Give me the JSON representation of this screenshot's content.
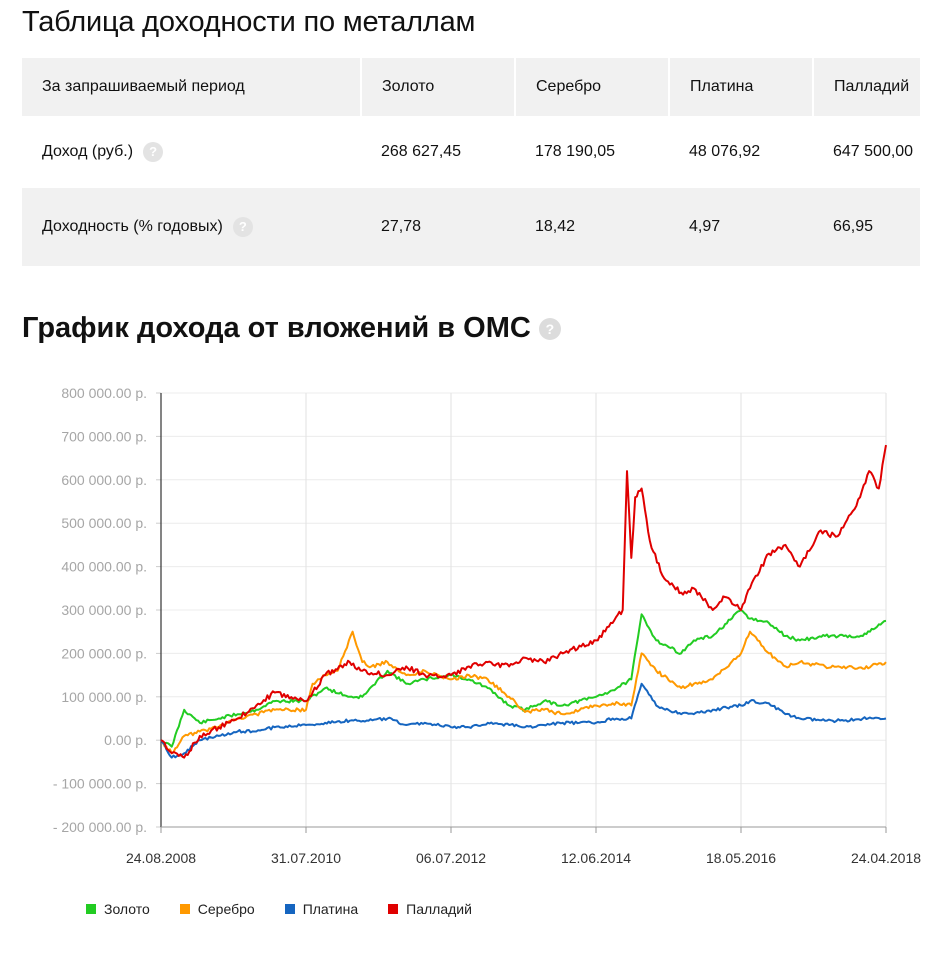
{
  "table": {
    "title": "Таблица доходности по металлам",
    "header": [
      "За запрашиваемый период",
      "Золото",
      "Серебро",
      "Платина",
      "Палладий"
    ],
    "rows": [
      {
        "label": "Доход (руб.)",
        "values": [
          "268 627,45",
          "178 190,05",
          "48 076,92",
          "647 500,00"
        ]
      },
      {
        "label": "Доходность (% годовых)",
        "values": [
          "27,78",
          "18,42",
          "4,97",
          "66,95"
        ]
      }
    ],
    "help_glyph": "?"
  },
  "chart_section": {
    "title": "График дохода от вложений в ОМС",
    "help_glyph": "?"
  },
  "chart_data": {
    "type": "line",
    "ylim": [
      -200000,
      800000
    ],
    "y_ticks": [
      800000,
      700000,
      600000,
      500000,
      400000,
      300000,
      200000,
      100000,
      0,
      -100000,
      -200000
    ],
    "y_tick_labels": [
      "800 000.00 р.",
      "700 000.00 р.",
      "600 000.00 р.",
      "500 000.00 р.",
      "400 000.00 р.",
      "300 000.00 р.",
      "200 000.00 р.",
      "100 000.00 р.",
      "0.00 р.",
      "- 100 000.00 р.",
      "- 200 000.00 р."
    ],
    "x_ticks": [
      "2008-08-24",
      "2010-07-31",
      "2012-07-06",
      "2014-06-12",
      "2016-05-18",
      "2018-04-24"
    ],
    "x_tick_labels": [
      "24.08.2008",
      "31.07.2010",
      "06.07.2012",
      "12.06.2014",
      "18.05.2016",
      "24.04.2018"
    ],
    "grid": true,
    "legend_position": "bottom-left",
    "series": [
      {
        "name": "Золото",
        "color": "#22cc22",
        "x": [
          "2008-08-24",
          "2008-10-15",
          "2008-12-15",
          "2009-03-01",
          "2009-06-01",
          "2009-09-01",
          "2009-12-01",
          "2010-03-01",
          "2010-07-31",
          "2010-11-01",
          "2011-03-01",
          "2011-05-01",
          "2011-09-01",
          "2011-12-01",
          "2012-03-01",
          "2012-07-06",
          "2012-10-01",
          "2013-01-01",
          "2013-04-15",
          "2013-07-01",
          "2013-10-01",
          "2014-01-01",
          "2014-06-12",
          "2014-09-01",
          "2014-12-01",
          "2015-01-20",
          "2015-04-01",
          "2015-08-01",
          "2015-10-01",
          "2016-01-01",
          "2016-05-18",
          "2016-07-01",
          "2016-10-01",
          "2016-12-20",
          "2017-03-01",
          "2017-07-01",
          "2017-10-01",
          "2018-01-01",
          "2018-04-24"
        ],
        "values": [
          0,
          -15000,
          70000,
          40000,
          50000,
          60000,
          70000,
          90000,
          90000,
          120000,
          100000,
          100000,
          160000,
          130000,
          140000,
          150000,
          140000,
          120000,
          80000,
          70000,
          90000,
          80000,
          100000,
          115000,
          140000,
          290000,
          230000,
          200000,
          230000,
          240000,
          300000,
          280000,
          270000,
          240000,
          230000,
          240000,
          240000,
          240000,
          275000
        ]
      },
      {
        "name": "Серебро",
        "color": "#ff9900",
        "x": [
          "2008-08-24",
          "2008-10-15",
          "2008-12-15",
          "2009-03-01",
          "2009-06-01",
          "2009-09-01",
          "2009-12-01",
          "2010-03-01",
          "2010-07-31",
          "2010-09-01",
          "2010-11-01",
          "2011-01-01",
          "2011-03-15",
          "2011-05-01",
          "2011-06-15",
          "2011-09-01",
          "2011-12-01",
          "2012-03-01",
          "2012-07-06",
          "2012-10-01",
          "2013-01-01",
          "2013-04-15",
          "2013-07-01",
          "2013-10-01",
          "2014-01-01",
          "2014-06-12",
          "2014-09-01",
          "2014-12-01",
          "2015-01-20",
          "2015-04-01",
          "2015-08-01",
          "2015-10-01",
          "2016-01-01",
          "2016-05-18",
          "2016-07-01",
          "2016-10-01",
          "2016-12-20",
          "2017-03-01",
          "2017-07-01",
          "2017-10-01",
          "2018-01-01",
          "2018-04-24"
        ],
        "values": [
          0,
          -30000,
          10000,
          20000,
          30000,
          50000,
          60000,
          70000,
          70000,
          130000,
          150000,
          160000,
          250000,
          180000,
          170000,
          180000,
          150000,
          160000,
          140000,
          150000,
          140000,
          100000,
          65000,
          70000,
          60000,
          80000,
          85000,
          80000,
          200000,
          160000,
          120000,
          130000,
          140000,
          200000,
          250000,
          200000,
          170000,
          180000,
          170000,
          170000,
          165000,
          180000
        ]
      },
      {
        "name": "Платина",
        "color": "#1565c0",
        "x": [
          "2008-08-24",
          "2008-10-15",
          "2008-12-15",
          "2009-03-01",
          "2009-06-01",
          "2009-09-01",
          "2009-12-01",
          "2010-03-01",
          "2010-07-31",
          "2010-11-01",
          "2011-03-01",
          "2011-06-01",
          "2011-09-01",
          "2011-12-01",
          "2012-03-01",
          "2012-07-06",
          "2012-10-01",
          "2013-01-01",
          "2013-04-15",
          "2013-07-01",
          "2013-10-01",
          "2014-01-01",
          "2014-06-12",
          "2014-09-01",
          "2014-12-01",
          "2015-01-20",
          "2015-04-01",
          "2015-08-01",
          "2015-10-01",
          "2016-01-01",
          "2016-05-18",
          "2016-07-01",
          "2016-10-01",
          "2016-12-20",
          "2017-03-01",
          "2017-07-01",
          "2017-10-01",
          "2018-01-01",
          "2018-04-24"
        ],
        "values": [
          0,
          -40000,
          -30000,
          0,
          10000,
          20000,
          20000,
          30000,
          35000,
          40000,
          45000,
          45000,
          50000,
          35000,
          40000,
          30000,
          30000,
          40000,
          35000,
          30000,
          35000,
          40000,
          40000,
          50000,
          50000,
          130000,
          80000,
          60000,
          60000,
          70000,
          80000,
          90000,
          85000,
          60000,
          50000,
          45000,
          45000,
          50000,
          50000
        ]
      },
      {
        "name": "Палладий",
        "color": "#e00000",
        "x": [
          "2008-08-24",
          "2008-10-15",
          "2008-12-15",
          "2009-03-01",
          "2009-06-01",
          "2009-09-01",
          "2009-12-01",
          "2010-03-01",
          "2010-07-31",
          "2010-11-01",
          "2011-03-01",
          "2011-05-01",
          "2011-09-01",
          "2011-12-01",
          "2012-03-01",
          "2012-07-06",
          "2012-10-01",
          "2013-01-01",
          "2013-04-15",
          "2013-07-01",
          "2013-10-01",
          "2014-01-01",
          "2014-06-12",
          "2014-09-01",
          "2014-10-20",
          "2014-11-10",
          "2014-12-01",
          "2014-12-20",
          "2015-01-20",
          "2015-03-01",
          "2015-05-01",
          "2015-08-01",
          "2015-10-01",
          "2016-01-01",
          "2016-03-01",
          "2016-05-18",
          "2016-07-01",
          "2016-10-01",
          "2016-12-20",
          "2017-03-01",
          "2017-06-01",
          "2017-09-01",
          "2017-12-01",
          "2018-02-01",
          "2018-03-20",
          "2018-04-24"
        ],
        "values": [
          0,
          -30000,
          -40000,
          10000,
          30000,
          50000,
          80000,
          110000,
          90000,
          150000,
          180000,
          160000,
          150000,
          170000,
          150000,
          150000,
          170000,
          180000,
          170000,
          190000,
          180000,
          200000,
          230000,
          270000,
          300000,
          620000,
          420000,
          560000,
          580000,
          460000,
          380000,
          340000,
          350000,
          300000,
          330000,
          300000,
          350000,
          430000,
          450000,
          400000,
          480000,
          470000,
          540000,
          620000,
          580000,
          680000
        ]
      }
    ]
  },
  "legend": [
    {
      "name": "Золото",
      "color": "#22cc22"
    },
    {
      "name": "Серебро",
      "color": "#ff9900"
    },
    {
      "name": "Платина",
      "color": "#1565c0"
    },
    {
      "name": "Палладий",
      "color": "#e00000"
    }
  ]
}
